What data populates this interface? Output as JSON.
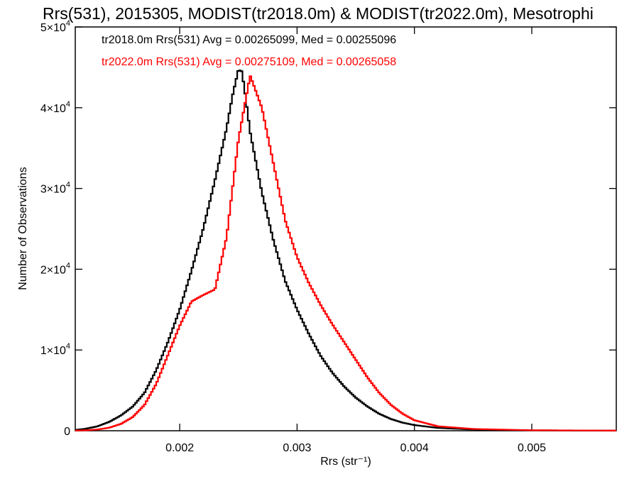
{
  "chart_data": {
    "type": "line",
    "title": "Rrs(531), 2015305, MODIST(tr2018.0m) & MODIST(tr2022.0m), Mesotrophi",
    "xlabel": "Rrs (str⁻¹)",
    "ylabel": "Number of Observations",
    "xlim": [
      0.00111,
      0.00572
    ],
    "ylim": [
      0,
      50000
    ],
    "x_ticks": [
      {
        "value": 0.002,
        "label": "0.002"
      },
      {
        "value": 0.003,
        "label": "0.003"
      },
      {
        "value": 0.004,
        "label": "0.004"
      },
      {
        "value": 0.005,
        "label": "0.005"
      }
    ],
    "y_ticks": [
      {
        "value": 0,
        "base": "0",
        "exp": ""
      },
      {
        "value": 10000,
        "base": "1×10",
        "exp": "4"
      },
      {
        "value": 20000,
        "base": "2×10",
        "exp": "4"
      },
      {
        "value": 30000,
        "base": "3×10",
        "exp": "4"
      },
      {
        "value": 40000,
        "base": "4×10",
        "exp": "4"
      },
      {
        "value": 50000,
        "base": "5×10",
        "exp": "4"
      }
    ],
    "grid": false,
    "legend_position": "top-left",
    "series": [
      {
        "name": "tr2018.0m",
        "color": "#000000",
        "annotation": "tr2018.0m Rrs(531) Avg = 0.00265099, Med = 0.00255096",
        "points": [
          [
            0.00111,
            100
          ],
          [
            0.0012,
            250
          ],
          [
            0.0013,
            550
          ],
          [
            0.0014,
            1100
          ],
          [
            0.0015,
            1900
          ],
          [
            0.0016,
            3000
          ],
          [
            0.0017,
            4700
          ],
          [
            0.0018,
            7500
          ],
          [
            0.0019,
            11000
          ],
          [
            0.002,
            15000
          ],
          [
            0.0021,
            19800
          ],
          [
            0.0022,
            25000
          ],
          [
            0.0023,
            31000
          ],
          [
            0.0024,
            37500
          ],
          [
            0.00245,
            41500
          ],
          [
            0.0025,
            44700
          ],
          [
            0.00253,
            44500
          ],
          [
            0.00256,
            41500
          ],
          [
            0.0026,
            37000
          ],
          [
            0.0027,
            29500
          ],
          [
            0.0028,
            23500
          ],
          [
            0.0029,
            18500
          ],
          [
            0.003,
            15000
          ],
          [
            0.0031,
            12000
          ],
          [
            0.0032,
            9300
          ],
          [
            0.0033,
            7200
          ],
          [
            0.0034,
            5500
          ],
          [
            0.0035,
            4100
          ],
          [
            0.0036,
            3000
          ],
          [
            0.0037,
            2100
          ],
          [
            0.0038,
            1450
          ],
          [
            0.0039,
            1000
          ],
          [
            0.004,
            700
          ],
          [
            0.0042,
            350
          ],
          [
            0.0045,
            150
          ],
          [
            0.005,
            50
          ],
          [
            0.00572,
            20
          ]
        ]
      },
      {
        "name": "tr2022.0m",
        "color": "#ff0000",
        "annotation": "tr2022.0m Rrs(531) Avg = 0.00275109, Med = 0.00265058",
        "points": [
          [
            0.00111,
            20
          ],
          [
            0.0012,
            60
          ],
          [
            0.0013,
            150
          ],
          [
            0.0014,
            380
          ],
          [
            0.0015,
            850
          ],
          [
            0.0016,
            1700
          ],
          [
            0.0017,
            3200
          ],
          [
            0.0018,
            5800
          ],
          [
            0.0019,
            9400
          ],
          [
            0.002,
            13000
          ],
          [
            0.0021,
            16000
          ],
          [
            0.0022,
            16800
          ],
          [
            0.0023,
            17500
          ],
          [
            0.0024,
            24000
          ],
          [
            0.0025,
            36000
          ],
          [
            0.0026,
            44000
          ],
          [
            0.0027,
            40000
          ],
          [
            0.0028,
            33000
          ],
          [
            0.0029,
            26000
          ],
          [
            0.003,
            21500
          ],
          [
            0.0031,
            18300
          ],
          [
            0.0032,
            15600
          ],
          [
            0.0033,
            13200
          ],
          [
            0.0034,
            11000
          ],
          [
            0.0035,
            8800
          ],
          [
            0.0036,
            6600
          ],
          [
            0.0037,
            4700
          ],
          [
            0.0038,
            3200
          ],
          [
            0.0039,
            2100
          ],
          [
            0.004,
            1300
          ],
          [
            0.0042,
            550
          ],
          [
            0.0045,
            220
          ],
          [
            0.005,
            60
          ],
          [
            0.00572,
            20
          ]
        ]
      }
    ]
  }
}
